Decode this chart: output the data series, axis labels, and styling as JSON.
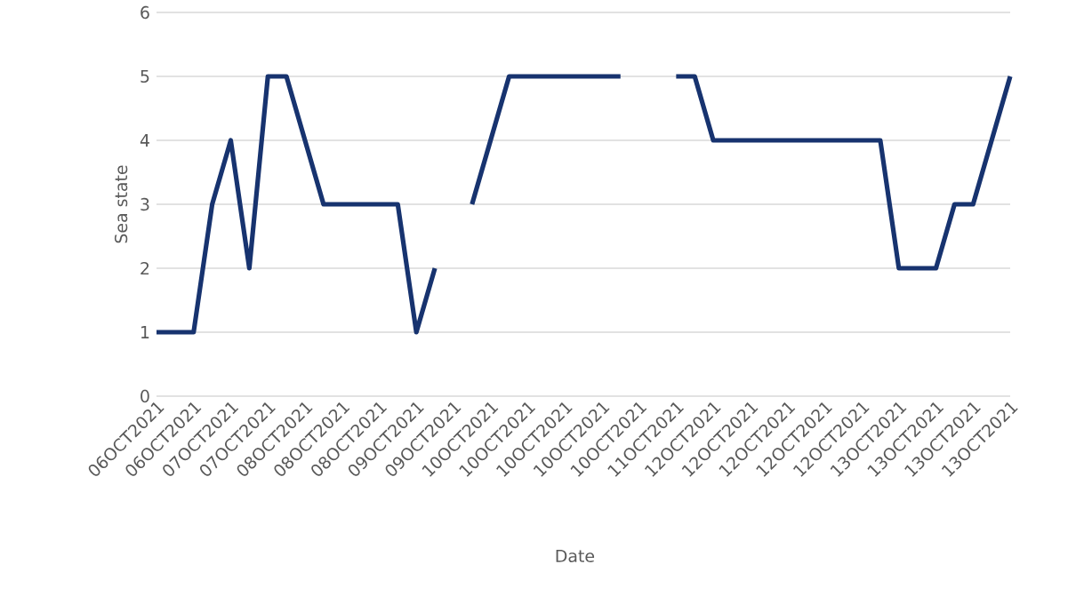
{
  "chart_data": {
    "type": "line",
    "xlabel": "Date",
    "ylabel": "Sea state",
    "categories": [
      "06OCT2021",
      null,
      "06OCT2021",
      null,
      "07OCT2021",
      null,
      "07OCT2021",
      null,
      "08OCT2021",
      null,
      "08OCT2021",
      null,
      "08OCT2021",
      null,
      "09OCT2021",
      null,
      "09OCT2021",
      null,
      "10OCT2021",
      null,
      "10OCT2021",
      null,
      "10OCT2021",
      null,
      "10OCT2021",
      null,
      "10OCT2021",
      null,
      "11OCT2021",
      null,
      "12OCT2021",
      null,
      "12OCT2021",
      null,
      "12OCT2021",
      null,
      "12OCT2021",
      null,
      "12OCT2021",
      null,
      "13OCT2021",
      null,
      "13OCT2021",
      null,
      "13OCT2021",
      null,
      "13OCT2021"
    ],
    "series": [
      {
        "color": "#17336f",
        "values": [
          1,
          1,
          1,
          3,
          4,
          2,
          5,
          5,
          4,
          3,
          3,
          3,
          3,
          3,
          1,
          2,
          null,
          3,
          4,
          5,
          5,
          5,
          5,
          5,
          5,
          5,
          null,
          null,
          5,
          5,
          4,
          4,
          4,
          4,
          4,
          4,
          4,
          4,
          4,
          4,
          2,
          2,
          2,
          3,
          3,
          4,
          5
        ]
      }
    ],
    "ylim": [
      0,
      6
    ],
    "yticks": [
      0,
      1,
      2,
      3,
      4,
      5,
      6
    ],
    "grid": "y",
    "marker": "none",
    "line_style": "solid"
  }
}
